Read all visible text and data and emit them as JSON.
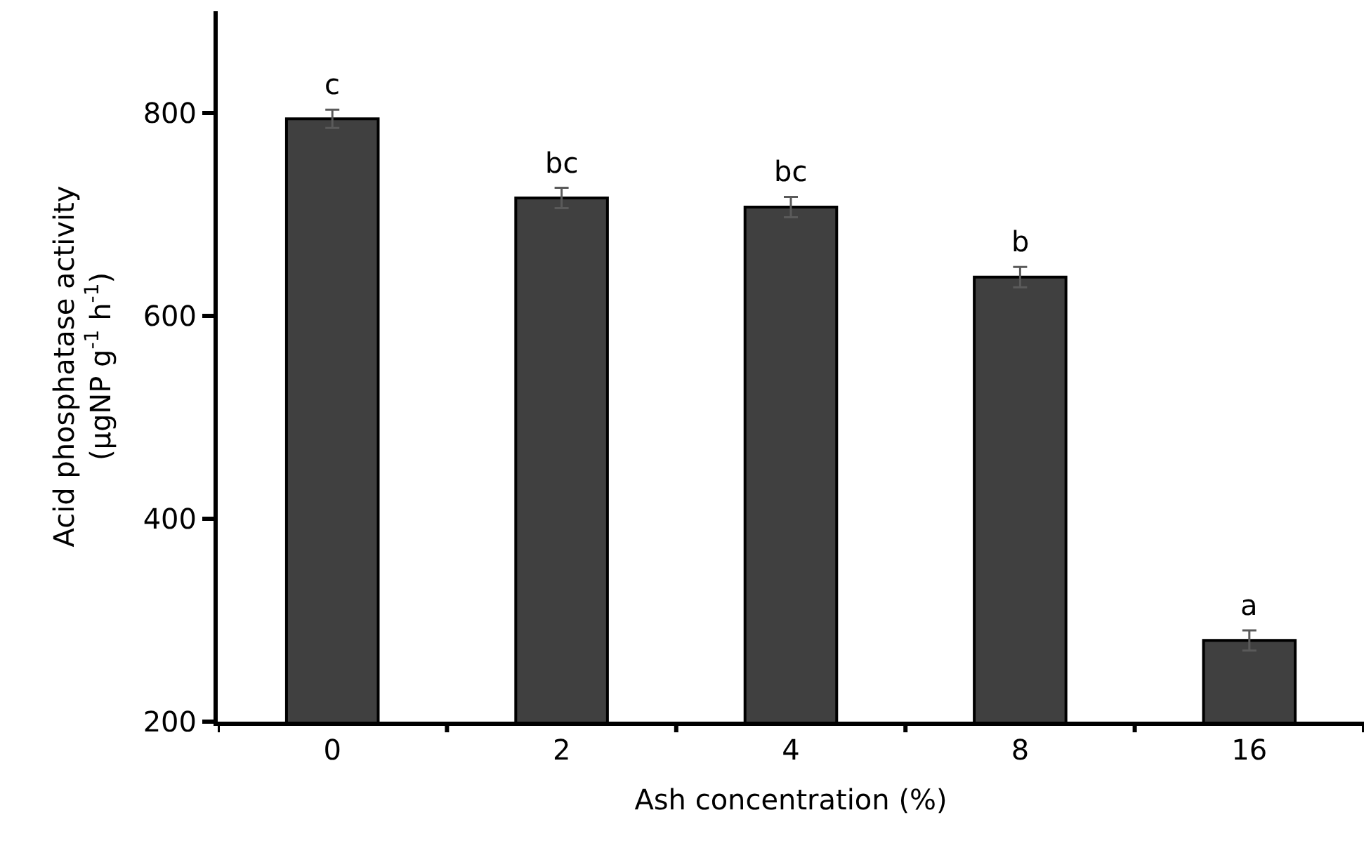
{
  "chart_data": {
    "type": "bar",
    "xlabel": "Ash concentration (%)",
    "ylabel": "Acid phosphatase activity\n(μgNP g$^{-1}$ h$^{-1}$)",
    "categories": [
      "0",
      "2",
      "4",
      "8",
      "16"
    ],
    "values": [
      794,
      716,
      707,
      638,
      280
    ],
    "errors": [
      9,
      10,
      10,
      10,
      10
    ],
    "color": "#404040",
    "value_labels": [
      "c",
      "bc",
      "bc",
      "b",
      "a"
    ],
    "ylim": [
      200,
      900
    ],
    "yticks": [
      200,
      400,
      600,
      800
    ]
  }
}
